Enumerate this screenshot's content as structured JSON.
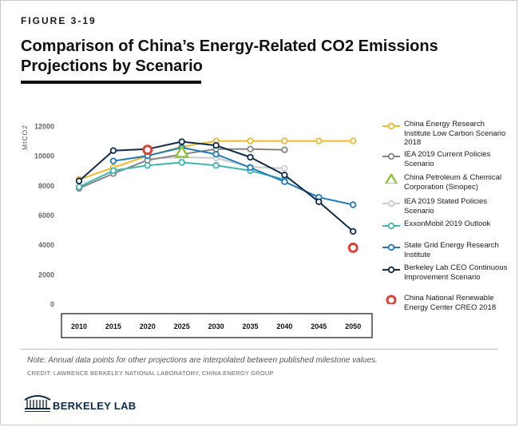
{
  "figure_label": "FIGURE 3-19",
  "title_line1": "Comparison of China’s Energy-Related CO2 Emissions",
  "title_line2": "Projections by Scenario",
  "note": "Note: Annual data points for other projections are interpolated between published milestone values.",
  "credit": "CREDIT: LAWRENCE BERKELEY NATIONAL LABORATORY, CHINA ENERGY GROUP",
  "logo_text": "BERKELEY LAB",
  "chart_data": {
    "type": "line",
    "ylabel": "MtCO2",
    "x": [
      2010,
      2015,
      2020,
      2025,
      2030,
      2035,
      2040,
      2045,
      2050
    ],
    "ylim": [
      0,
      12000
    ],
    "yticks": [
      0,
      2000,
      4000,
      6000,
      8000,
      10000,
      12000
    ],
    "grid": false,
    "legend_position": "right",
    "series": [
      {
        "name": "China Energy Research Institute Low Carbon Scenario 2018",
        "color": "#f1b82d",
        "marker": "circle",
        "points": [
          [
            2010,
            8400
          ],
          [
            2015,
            9200
          ],
          [
            2020,
            10000
          ],
          [
            2025,
            10600
          ],
          [
            2030,
            11000
          ],
          [
            2035,
            11000
          ],
          [
            2040,
            11000
          ],
          [
            2045,
            11000
          ],
          [
            2050,
            11000
          ]
        ]
      },
      {
        "name": "IEA 2019 Current Policies Scenario",
        "color": "#858585",
        "marker": "circle",
        "points": [
          [
            2010,
            7800
          ],
          [
            2015,
            8800
          ],
          [
            2020,
            9700
          ],
          [
            2025,
            10100
          ],
          [
            2030,
            10450
          ],
          [
            2035,
            10450
          ],
          [
            2040,
            10400
          ]
        ]
      },
      {
        "name": "China Petroleum & Chemical Corporation (Sinopec)",
        "color": "#8cc63f",
        "marker": "triangle",
        "points": [
          [
            2025,
            10200
          ]
        ]
      },
      {
        "name": "IEA 2019 Stated Policies Scenario",
        "color": "#cccccc",
        "marker": "circle",
        "points": [
          [
            2020,
            9800
          ],
          [
            2025,
            9900
          ],
          [
            2030,
            9850
          ],
          [
            2035,
            9250
          ],
          [
            2040,
            9150
          ]
        ]
      },
      {
        "name": "ExxonMobil 2019 Outlook",
        "color": "#3fb7b0",
        "marker": "circle",
        "points": [
          [
            2010,
            7900
          ],
          [
            2015,
            9000
          ],
          [
            2020,
            9350
          ],
          [
            2025,
            9550
          ],
          [
            2030,
            9350
          ],
          [
            2035,
            9000
          ],
          [
            2040,
            8400
          ]
        ]
      },
      {
        "name": "State Grid Energy Research Institute",
        "color": "#1f7ab8",
        "marker": "circle",
        "points": [
          [
            2015,
            9650
          ],
          [
            2020,
            10000
          ],
          [
            2025,
            10550
          ],
          [
            2030,
            10100
          ],
          [
            2035,
            9200
          ],
          [
            2040,
            8250
          ],
          [
            2045,
            7200
          ],
          [
            2050,
            6700
          ]
        ]
      },
      {
        "name": "Berkeley Lab CEO Continuous Improvement Scenario",
        "color": "#0f2a47",
        "marker": "circle",
        "points": [
          [
            2010,
            8300
          ],
          [
            2015,
            10350
          ],
          [
            2020,
            10450
          ],
          [
            2025,
            10950
          ],
          [
            2030,
            10700
          ],
          [
            2035,
            9900
          ],
          [
            2040,
            8700
          ],
          [
            2045,
            6900
          ],
          [
            2050,
            4900
          ]
        ]
      },
      {
        "name": "China National Renewable Energy Center CREO 2018",
        "color": "#d9443a",
        "marker": "ring",
        "points": [
          [
            2020,
            10400
          ],
          [
            2050,
            3800
          ]
        ]
      }
    ]
  }
}
